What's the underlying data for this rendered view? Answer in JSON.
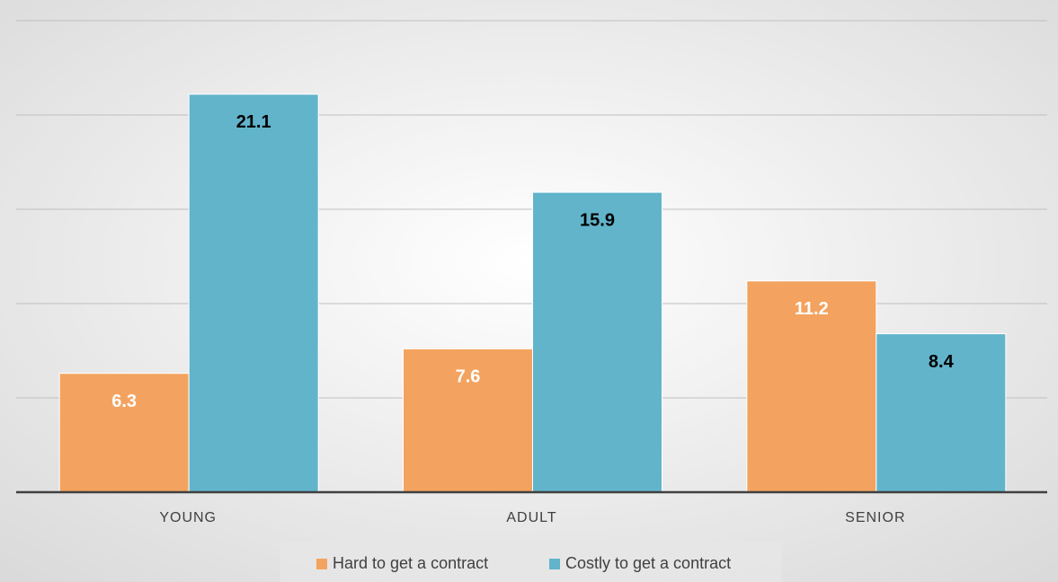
{
  "chart_data": {
    "type": "bar",
    "categories": [
      "YOUNG",
      "ADULT",
      "SENIOR"
    ],
    "series": [
      {
        "name": "Hard to get a contract",
        "color": "#f3a35f",
        "label_color": "#ffffff",
        "values": [
          6.3,
          7.6,
          11.2
        ]
      },
      {
        "name": "Costly to get a contract",
        "color": "#62b4cb",
        "label_color": "#000000",
        "values": [
          21.1,
          15.9,
          8.4
        ]
      }
    ],
    "ylim": [
      0,
      25
    ],
    "yticks": [
      5,
      10,
      15,
      20,
      25
    ],
    "grid": true,
    "legend": "bottom"
  }
}
